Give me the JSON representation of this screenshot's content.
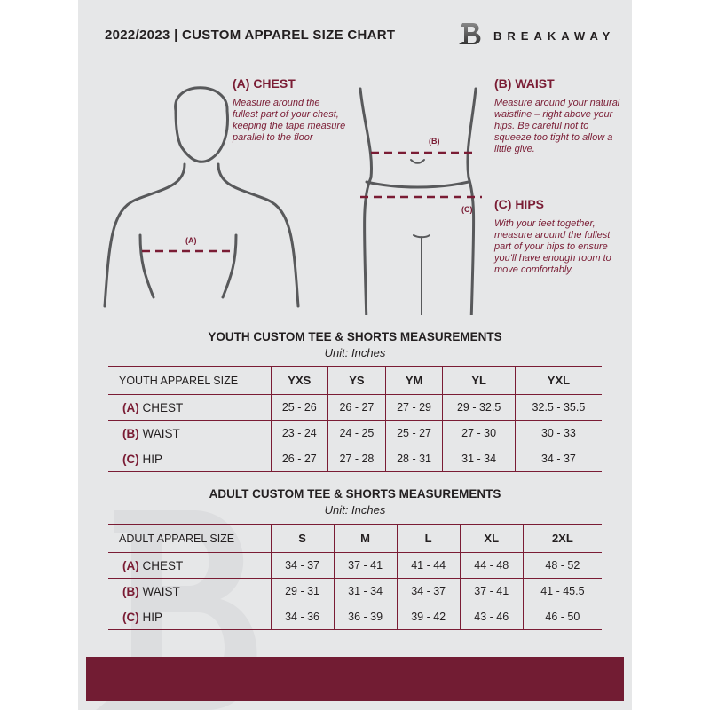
{
  "header": {
    "title": "2022/2023  |  CUSTOM APPAREL SIZE CHART",
    "brand": "BREAKAWAY",
    "logo_letter": "B"
  },
  "guide": {
    "chest": {
      "title": "(A) CHEST",
      "text": "Measure around the fullest part of your chest, keeping the tape measure parallel to the floor",
      "marker": "(A)"
    },
    "waist": {
      "title": "(B) WAIST",
      "text": "Measure around your natural waistline – right above your hips. Be careful not to squeeze too tight to allow a little give.",
      "marker": "(B)"
    },
    "hips": {
      "title": "(C) HIPS",
      "text": "With your feet together, measure around the fullest part of your hips to ensure you'll have enough room to move comfortably.",
      "marker": "(C)"
    }
  },
  "youth": {
    "title": "YOUTH CUSTOM TEE & SHORTS MEASUREMENTS",
    "unit": "Unit: Inches",
    "label": "YOUTH APPAREL SIZE",
    "sizes": [
      "YXS",
      "YS",
      "YM",
      "YL",
      "YXL"
    ],
    "rows": [
      {
        "letter": "(A)",
        "name": "CHEST",
        "values": [
          "25 - 26",
          "26 - 27",
          "27 - 29",
          "29 - 32.5",
          "32.5 - 35.5"
        ]
      },
      {
        "letter": "(B)",
        "name": "WAIST",
        "values": [
          "23 - 24",
          "24 - 25",
          "25 - 27",
          "27 - 30",
          "30 - 33"
        ]
      },
      {
        "letter": "(C)",
        "name": "HIP",
        "values": [
          "26 - 27",
          "27 - 28",
          "28 - 31",
          "31 - 34",
          "34 - 37"
        ]
      }
    ]
  },
  "adult": {
    "title": "ADULT CUSTOM TEE & SHORTS MEASUREMENTS",
    "unit": "Unit: Inches",
    "label": "ADULT APPAREL SIZE",
    "sizes": [
      "S",
      "M",
      "L",
      "XL",
      "2XL"
    ],
    "rows": [
      {
        "letter": "(A)",
        "name": "CHEST",
        "values": [
          "34 - 37",
          "37 - 41",
          "41 - 44",
          "44 - 48",
          "48 - 52"
        ]
      },
      {
        "letter": "(B)",
        "name": "WAIST",
        "values": [
          "29 - 31",
          "31 - 34",
          "34 - 37",
          "37 - 41",
          "41 - 45.5"
        ]
      },
      {
        "letter": "(C)",
        "name": "HIP",
        "values": [
          "34 - 36",
          "36 - 39",
          "39 - 42",
          "43 - 46",
          "46 - 50"
        ]
      }
    ]
  },
  "colors": {
    "accent": "#7a1c34",
    "footer": "#721c33",
    "background": "#e6e7e8"
  }
}
